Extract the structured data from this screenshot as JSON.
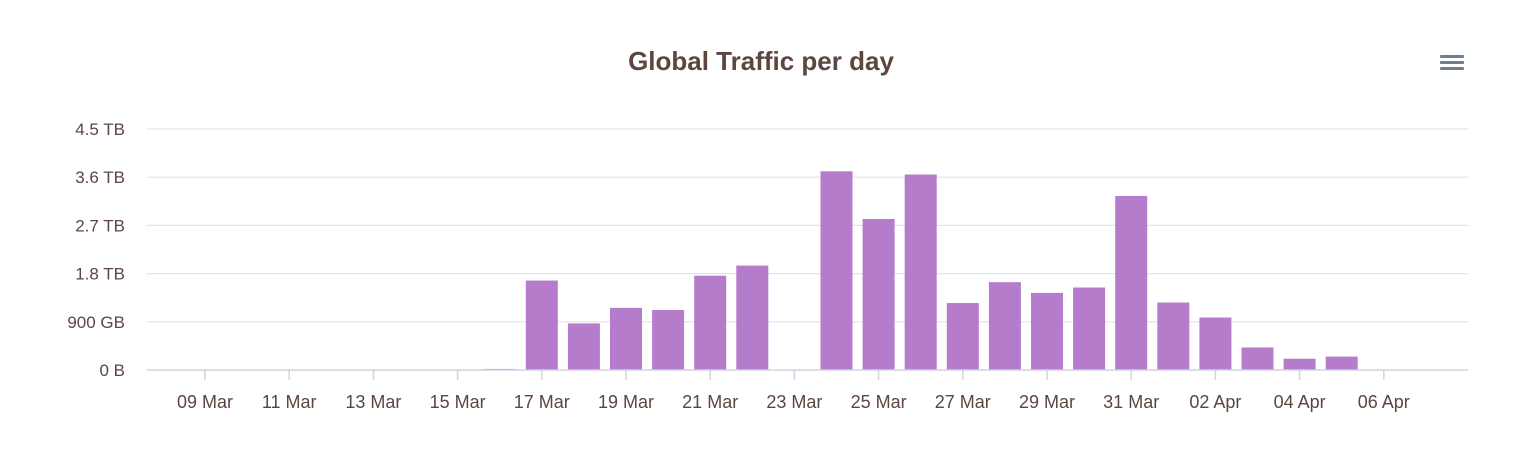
{
  "chart_data": {
    "type": "bar",
    "title": "Global Traffic per day",
    "xlabel": "",
    "ylabel": "",
    "bar_color": "#b57ccb",
    "grid_color": "#e3e3e3",
    "axis_color": "#cfd4e1",
    "ylim_tb": [
      0,
      4.5
    ],
    "y_ticks": [
      {
        "value_tb": 0,
        "label": "0 B"
      },
      {
        "value_tb": 0.9,
        "label": "900 GB"
      },
      {
        "value_tb": 1.8,
        "label": "1.8 TB"
      },
      {
        "value_tb": 2.7,
        "label": "2.7 TB"
      },
      {
        "value_tb": 3.6,
        "label": "3.6 TB"
      },
      {
        "value_tb": 4.5,
        "label": "4.5 TB"
      }
    ],
    "x_tick_labels": [
      "09 Mar",
      "11 Mar",
      "13 Mar",
      "15 Mar",
      "17 Mar",
      "19 Mar",
      "21 Mar",
      "23 Mar",
      "25 Mar",
      "27 Mar",
      "29 Mar",
      "31 Mar",
      "02 Apr",
      "04 Apr",
      "06 Apr"
    ],
    "categories": [
      "09 Mar",
      "10 Mar",
      "11 Mar",
      "12 Mar",
      "13 Mar",
      "14 Mar",
      "15 Mar",
      "16 Mar",
      "17 Mar",
      "18 Mar",
      "19 Mar",
      "20 Mar",
      "21 Mar",
      "22 Mar",
      "23 Mar",
      "24 Mar",
      "25 Mar",
      "26 Mar",
      "27 Mar",
      "28 Mar",
      "29 Mar",
      "30 Mar",
      "31 Mar",
      "01 Apr",
      "02 Apr",
      "03 Apr",
      "04 Apr",
      "05 Apr",
      "06 Apr",
      "07 Apr"
    ],
    "series": [
      {
        "unit": "TB",
        "values": [
          0,
          0,
          0,
          0,
          0,
          0,
          0,
          0.02,
          1.67,
          0.87,
          1.16,
          1.12,
          1.76,
          1.95,
          0,
          3.71,
          2.82,
          3.65,
          1.25,
          1.64,
          1.44,
          1.54,
          3.25,
          1.26,
          0.98,
          0.42,
          0.21,
          0.25,
          0,
          0
        ]
      }
    ]
  },
  "menu": {
    "icon": "hamburger-menu-icon"
  }
}
